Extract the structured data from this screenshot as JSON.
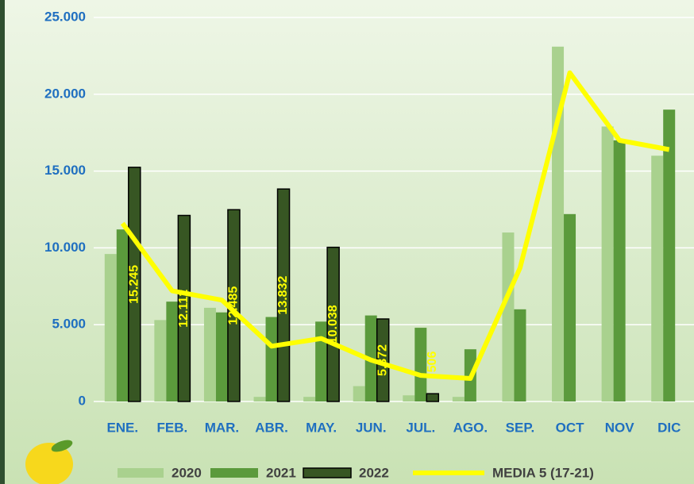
{
  "chart_data": {
    "type": "bar-line",
    "categories": [
      "ENE.",
      "FEB.",
      "MAR.",
      "ABR.",
      "MAY.",
      "JUN.",
      "JUL.",
      "AGO.",
      "SEP.",
      "OCT",
      "NOV",
      "DIC"
    ],
    "series": [
      {
        "name": "2020",
        "type": "bar",
        "color": "#a9d18e",
        "values": [
          9600,
          5300,
          6100,
          300,
          300,
          1000,
          400,
          300,
          11000,
          23100,
          17900,
          16000
        ]
      },
      {
        "name": "2021",
        "type": "bar",
        "color": "#5b9a3c",
        "values": [
          11200,
          6500,
          5800,
          5500,
          5200,
          5600,
          4800,
          3400,
          6000,
          12200,
          17000,
          19000
        ]
      },
      {
        "name": "2022",
        "type": "bar",
        "color": "#375623",
        "values": [
          15245,
          12112,
          12485,
          13832,
          10038,
          5372,
          506,
          null,
          null,
          null,
          null,
          null
        ],
        "value_labels": [
          "15.245",
          "12.112",
          "12.485",
          "13.832",
          "10.038",
          "5.372",
          "506",
          null,
          null,
          null,
          null,
          null
        ]
      },
      {
        "name": "MEDIA 5 (17-21)",
        "type": "line",
        "color": "#ffff00",
        "values": [
          11600,
          7200,
          6600,
          3600,
          4100,
          2700,
          1700,
          1500,
          8700,
          21400,
          17000,
          16400
        ]
      }
    ],
    "ylim": [
      0,
      25000
    ],
    "yticks": [
      0,
      {
        "value": 5000,
        "label": "5.000"
      },
      {
        "value": 10000,
        "label": "10.000"
      },
      {
        "value": 15000,
        "label": "15.000"
      },
      {
        "value": 20000,
        "label": "20.000"
      },
      {
        "value": 25000,
        "label": "25.000"
      }
    ],
    "grid": true
  }
}
